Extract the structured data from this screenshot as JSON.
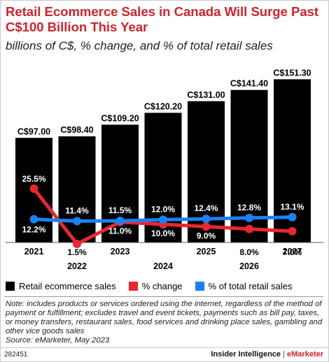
{
  "title": "Retail Ecommerce Sales in Canada Will Surge Past C$100 Billion This Year",
  "subtitle": "billions of C$, % change, and % of total retail sales",
  "chart_data": {
    "type": "bar",
    "categories": [
      "2021",
      "2022",
      "2023",
      "2024",
      "2025",
      "2026",
      "2027"
    ],
    "series": [
      {
        "name": "Retail ecommerce sales",
        "type": "bar",
        "values": [
          97.0,
          98.4,
          109.2,
          120.2,
          131.0,
          141.4,
          151.3
        ],
        "labels": [
          "C$97.00",
          "C$98.40",
          "C$109.20",
          "C$120.20",
          "C$131.00",
          "C$141.40",
          "C$151.30"
        ],
        "color": "#000000"
      },
      {
        "name": "% change",
        "type": "line",
        "values": [
          25.5,
          1.5,
          11.0,
          10.0,
          9.0,
          8.0,
          7.0
        ],
        "labels": [
          "25.5%",
          "1.5%",
          "11.0%",
          "10.0%",
          "9.0%",
          "8.0%",
          "7.0%"
        ],
        "color": "#e8282e"
      },
      {
        "name": "% of total retail sales",
        "type": "line",
        "values": [
          12.2,
          11.4,
          11.5,
          12.0,
          12.4,
          12.8,
          13.1
        ],
        "labels": [
          "12.2%",
          "11.4%",
          "11.5%",
          "12.0%",
          "12.4%",
          "12.8%",
          "13.1%"
        ],
        "color": "#1a82f5"
      }
    ],
    "ylim": [
      0,
      160
    ],
    "pct_range": [
      0,
      30
    ],
    "grid": false,
    "legend_position": "bottom"
  },
  "legend": [
    {
      "label": "Retail ecommerce sales",
      "color": "#000000"
    },
    {
      "label": "% change",
      "color": "#e8282e"
    },
    {
      "label": "% of total retail sales",
      "color": "#1a82f5"
    }
  ],
  "note": "Note: includes products or services ordered using the internet, regardless of the method of payment or fulfillment; excludes travel and event tickets, payments such as bill pay, taxes, or money transfers, restaurant sales, food services and drinking place sales, gambling and other vice goods sales",
  "source": "Source: eMarketer, May 2023",
  "chart_id": "282451",
  "brand": {
    "left": "Insider Intelligence",
    "sep": "|",
    "right": "eMarketer"
  }
}
